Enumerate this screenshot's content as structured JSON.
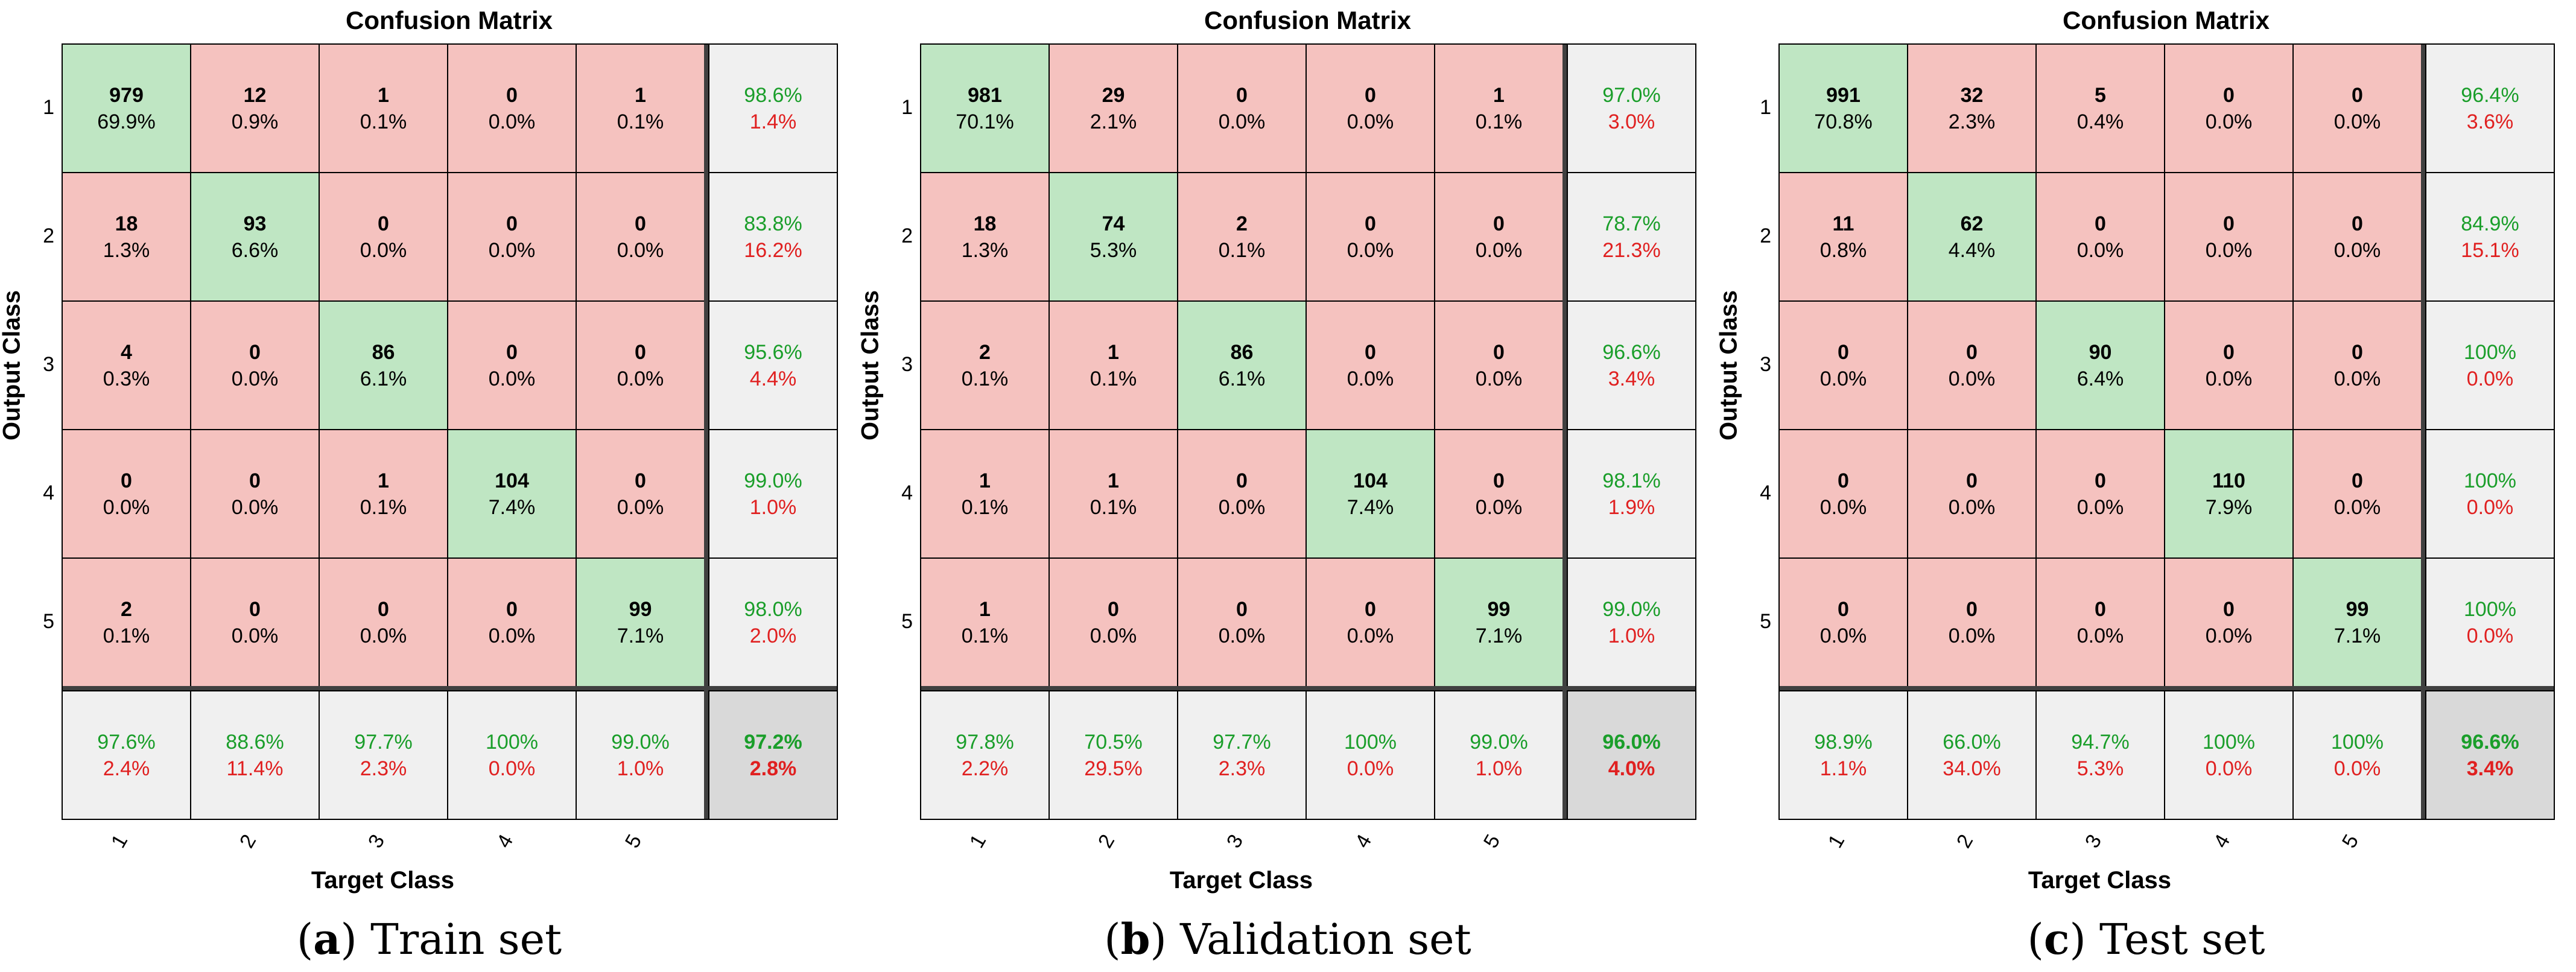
{
  "chart_data": [
    {
      "type": "table",
      "subplot": "a",
      "title": "Confusion Matrix",
      "xlabel": "Target Class",
      "ylabel": "Output Class",
      "class_labels": [
        "1",
        "2",
        "3",
        "4",
        "5"
      ],
      "matrix": [
        [
          979,
          12,
          1,
          0,
          1
        ],
        [
          18,
          93,
          0,
          0,
          0
        ],
        [
          4,
          0,
          86,
          0,
          0
        ],
        [
          0,
          0,
          1,
          104,
          0
        ],
        [
          2,
          0,
          0,
          0,
          99
        ]
      ],
      "cell_percent": [
        [
          "69.9%",
          "0.9%",
          "0.1%",
          "0.0%",
          "0.1%"
        ],
        [
          "1.3%",
          "6.6%",
          "0.0%",
          "0.0%",
          "0.0%"
        ],
        [
          "0.3%",
          "0.0%",
          "6.1%",
          "0.0%",
          "0.0%"
        ],
        [
          "0.0%",
          "0.0%",
          "0.1%",
          "7.4%",
          "0.0%"
        ],
        [
          "0.1%",
          "0.0%",
          "0.0%",
          "0.0%",
          "7.1%"
        ]
      ],
      "row_summary": [
        [
          "98.6%",
          "1.4%"
        ],
        [
          "83.8%",
          "16.2%"
        ],
        [
          "95.6%",
          "4.4%"
        ],
        [
          "99.0%",
          "1.0%"
        ],
        [
          "98.0%",
          "2.0%"
        ]
      ],
      "col_summary": [
        [
          "97.6%",
          "2.4%"
        ],
        [
          "88.6%",
          "11.4%"
        ],
        [
          "97.7%",
          "2.3%"
        ],
        [
          "100%",
          "0.0%"
        ],
        [
          "99.0%",
          "1.0%"
        ]
      ],
      "overall": [
        "97.2%",
        "2.8%"
      ],
      "caption_letter": "a",
      "caption_text": " Train set"
    },
    {
      "type": "table",
      "subplot": "b",
      "title": "Confusion Matrix",
      "xlabel": "Target Class",
      "ylabel": "Output Class",
      "class_labels": [
        "1",
        "2",
        "3",
        "4",
        "5"
      ],
      "matrix": [
        [
          981,
          29,
          0,
          0,
          1
        ],
        [
          18,
          74,
          2,
          0,
          0
        ],
        [
          2,
          1,
          86,
          0,
          0
        ],
        [
          1,
          1,
          0,
          104,
          0
        ],
        [
          1,
          0,
          0,
          0,
          99
        ]
      ],
      "cell_percent": [
        [
          "70.1%",
          "2.1%",
          "0.0%",
          "0.0%",
          "0.1%"
        ],
        [
          "1.3%",
          "5.3%",
          "0.1%",
          "0.0%",
          "0.0%"
        ],
        [
          "0.1%",
          "0.1%",
          "6.1%",
          "0.0%",
          "0.0%"
        ],
        [
          "0.1%",
          "0.1%",
          "0.0%",
          "7.4%",
          "0.0%"
        ],
        [
          "0.1%",
          "0.0%",
          "0.0%",
          "0.0%",
          "7.1%"
        ]
      ],
      "row_summary": [
        [
          "97.0%",
          "3.0%"
        ],
        [
          "78.7%",
          "21.3%"
        ],
        [
          "96.6%",
          "3.4%"
        ],
        [
          "98.1%",
          "1.9%"
        ],
        [
          "99.0%",
          "1.0%"
        ]
      ],
      "col_summary": [
        [
          "97.8%",
          "2.2%"
        ],
        [
          "70.5%",
          "29.5%"
        ],
        [
          "97.7%",
          "2.3%"
        ],
        [
          "100%",
          "0.0%"
        ],
        [
          "99.0%",
          "1.0%"
        ]
      ],
      "overall": [
        "96.0%",
        "4.0%"
      ],
      "caption_letter": "b",
      "caption_text": " Validation set"
    },
    {
      "type": "table",
      "subplot": "c",
      "title": "Confusion Matrix",
      "xlabel": "Target Class",
      "ylabel": "Output Class",
      "class_labels": [
        "1",
        "2",
        "3",
        "4",
        "5"
      ],
      "matrix": [
        [
          991,
          32,
          5,
          0,
          0
        ],
        [
          11,
          62,
          0,
          0,
          0
        ],
        [
          0,
          0,
          90,
          0,
          0
        ],
        [
          0,
          0,
          0,
          110,
          0
        ],
        [
          0,
          0,
          0,
          0,
          99
        ]
      ],
      "cell_percent": [
        [
          "70.8%",
          "2.3%",
          "0.4%",
          "0.0%",
          "0.0%"
        ],
        [
          "0.8%",
          "4.4%",
          "0.0%",
          "0.0%",
          "0.0%"
        ],
        [
          "0.0%",
          "0.0%",
          "6.4%",
          "0.0%",
          "0.0%"
        ],
        [
          "0.0%",
          "0.0%",
          "0.0%",
          "7.9%",
          "0.0%"
        ],
        [
          "0.0%",
          "0.0%",
          "0.0%",
          "0.0%",
          "7.1%"
        ]
      ],
      "row_summary": [
        [
          "96.4%",
          "3.6%"
        ],
        [
          "84.9%",
          "15.1%"
        ],
        [
          "100%",
          "0.0%"
        ],
        [
          "100%",
          "0.0%"
        ],
        [
          "100%",
          "0.0%"
        ]
      ],
      "col_summary": [
        [
          "98.9%",
          "1.1%"
        ],
        [
          "66.0%",
          "34.0%"
        ],
        [
          "94.7%",
          "5.3%"
        ],
        [
          "100%",
          "0.0%"
        ],
        [
          "100%",
          "0.0%"
        ]
      ],
      "overall": [
        "96.6%",
        "3.4%"
      ],
      "caption_letter": "c",
      "caption_text": " Test set"
    }
  ]
}
